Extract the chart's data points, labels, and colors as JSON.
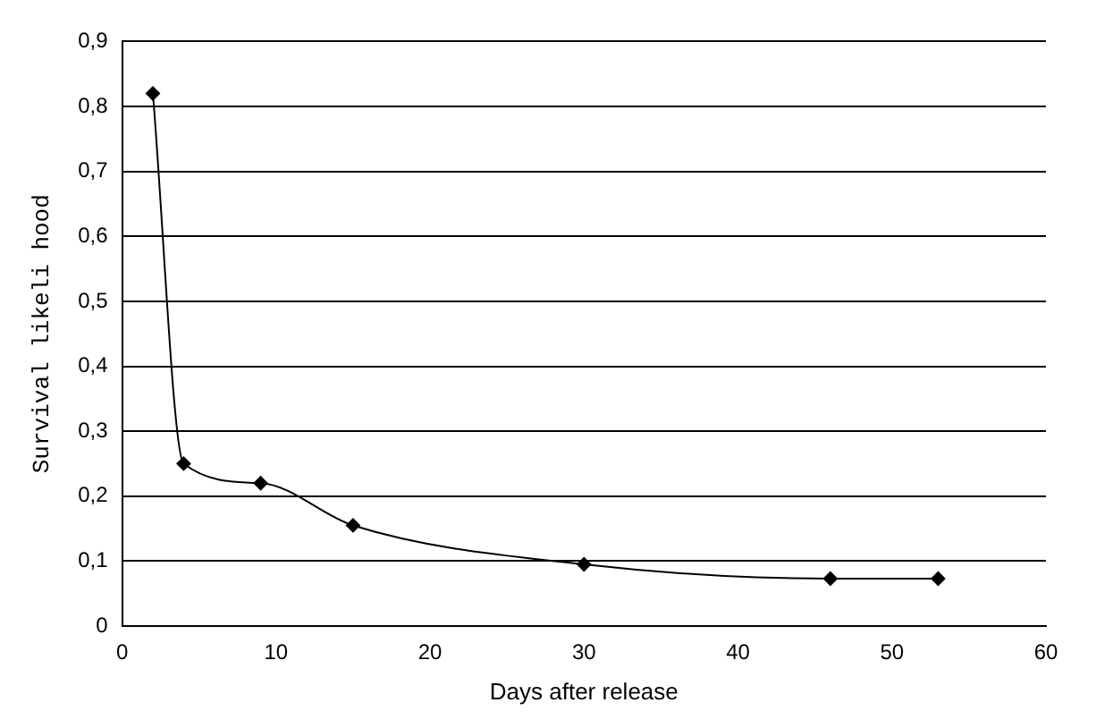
{
  "chart_data": {
    "type": "line",
    "xlabel": "Days after release",
    "ylabel": "Survival likeli hood",
    "x": [
      2,
      4,
      9,
      15,
      30,
      46,
      53
    ],
    "series": [
      {
        "color": "#000000",
        "values": [
          0.82,
          0.25,
          0.22,
          0.155,
          0.095,
          0.073,
          0.073
        ]
      }
    ],
    "xlim": [
      0,
      60
    ],
    "xticks": [
      0,
      10,
      20,
      30,
      40,
      50,
      60
    ],
    "ylim": [
      0,
      0.9
    ],
    "yticks": [
      0,
      {
        "value": 0.1,
        "label": "0,1"
      },
      {
        "value": 0.2,
        "label": "0,2"
      },
      {
        "value": 0.3,
        "label": "0,3"
      },
      {
        "value": 0.4,
        "label": "0,4"
      },
      {
        "value": 0.5,
        "label": "0,5"
      },
      {
        "value": 0.6,
        "label": "0,6"
      },
      {
        "value": 0.7,
        "label": "0,7"
      },
      {
        "value": 0.8,
        "label": "0,8"
      },
      {
        "value": 0.9,
        "label": "0,9"
      }
    ],
    "grid": "y",
    "marker": "diamond",
    "line_style": "solid"
  }
}
